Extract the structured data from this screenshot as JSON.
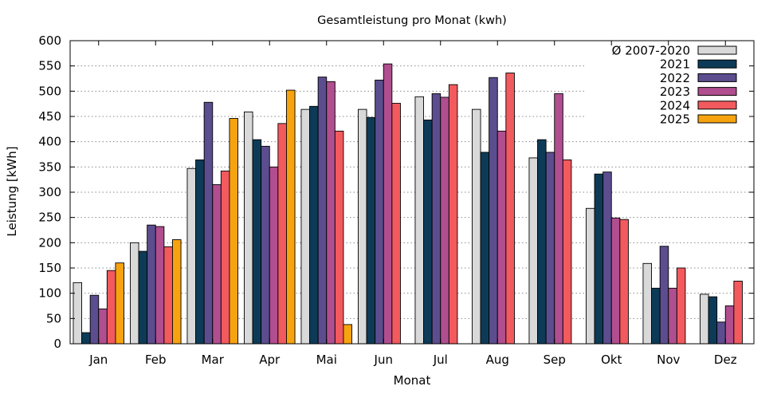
{
  "chart_data": {
    "type": "bar",
    "title": "Gesamtleistung pro Monat (kwh)",
    "xlabel": "Monat",
    "ylabel": "Leistung [kWh]",
    "ylim": [
      0,
      600
    ],
    "yticks": [
      0,
      50,
      100,
      150,
      200,
      250,
      300,
      350,
      400,
      450,
      500,
      550,
      600
    ],
    "grid": "horizontal dotted",
    "legend_position": "top-right",
    "categories": [
      "Jan",
      "Feb",
      "Mar",
      "Apr",
      "Mai",
      "Jun",
      "Jul",
      "Aug",
      "Sep",
      "Okt",
      "Nov",
      "Dez"
    ],
    "series": [
      {
        "name": "Ø 2007-2020",
        "color": "#d9d9d9",
        "values": [
          121,
          200,
          347,
          459,
          464,
          464,
          489,
          464,
          368,
          268,
          159,
          98
        ]
      },
      {
        "name": "2021",
        "color": "#0d3b57",
        "values": [
          22,
          183,
          364,
          404,
          470,
          448,
          443,
          379,
          404,
          336,
          110,
          93
        ]
      },
      {
        "name": "2022",
        "color": "#5c4d8f",
        "values": [
          96,
          235,
          478,
          391,
          528,
          522,
          495,
          527,
          379,
          340,
          193,
          43
        ]
      },
      {
        "name": "2023",
        "color": "#b04e8f",
        "values": [
          69,
          232,
          315,
          350,
          519,
          554,
          488,
          421,
          495,
          249,
          110,
          75
        ]
      },
      {
        "name": "2024",
        "color": "#f25a5e",
        "values": [
          145,
          192,
          342,
          436,
          421,
          476,
          513,
          536,
          364,
          246,
          150,
          124
        ]
      },
      {
        "name": "2025",
        "color": "#f7a30f",
        "values": [
          160,
          206,
          446,
          502,
          38,
          null,
          null,
          null,
          null,
          null,
          null,
          null
        ]
      }
    ]
  }
}
